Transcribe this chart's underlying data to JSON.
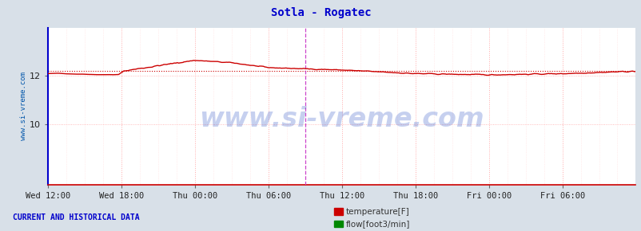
{
  "title": "Sotla - Rogatec",
  "title_color": "#0000cc",
  "title_fontsize": 10,
  "bg_color": "#d8e0e8",
  "plot_bg_color": "#ffffff",
  "ylabel_text": "www.si-vreme.com",
  "ylabel_color": "#0055aa",
  "watermark": "www.si-vreme.com",
  "watermark_color": "#4466cc",
  "watermark_alpha": 0.3,
  "watermark_fontsize": 24,
  "tick_labels": [
    "Wed 12:00",
    "Wed 18:00",
    "Thu 00:00",
    "Thu 06:00",
    "Thu 12:00",
    "Thu 18:00",
    "Fri 00:00",
    "Fri 06:00"
  ],
  "yticks": [
    10,
    12
  ],
  "ylim": [
    7.5,
    14.0
  ],
  "xlim": [
    0,
    575
  ],
  "grid_color_v": "#ffaaaa",
  "grid_color_h": "#ffaaaa",
  "grid_minor_color": "#ffdddd",
  "temp_color": "#cc0000",
  "temp_ref_color": "#cc0000",
  "flow_color": "#008800",
  "highlight_line_color": "#cc44cc",
  "border_left_color": "#0000cc",
  "border_bottom_color": "#cc0000",
  "footer_text": "CURRENT AND HISTORICAL DATA",
  "footer_color": "#0000cc",
  "legend_temp": "temperature[F]",
  "legend_flow": "flow[foot3/min]",
  "legend_color": "#333333",
  "n_points": 576,
  "tick_positions": [
    0,
    72,
    144,
    216,
    288,
    360,
    432,
    504
  ],
  "highlight_x": 252,
  "temp_ref_y": 12.2
}
